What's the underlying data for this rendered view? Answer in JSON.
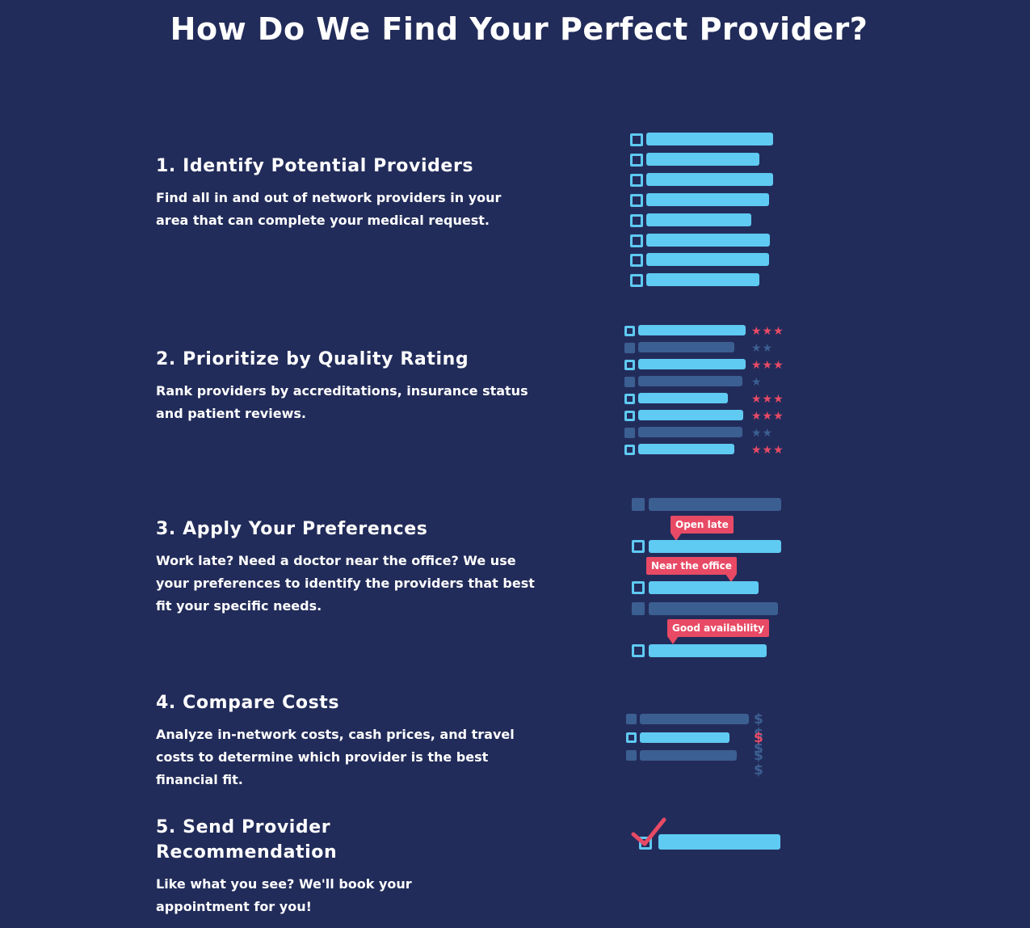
{
  "title": "How Do We Find Your Perfect Provider?",
  "colors": {
    "background": "#222c5a",
    "bar": "#5fcaf2",
    "bar_dim": "#3c5f92",
    "accent": "#e84a65"
  },
  "steps": [
    {
      "heading": "1. Identify Potential Providers",
      "body": "Find all in and out of network providers in your area that can complete your medical request."
    },
    {
      "heading": "2. Prioritize by Quality Rating",
      "body": "Rank providers by accreditations, insurance status and patient reviews."
    },
    {
      "heading": "3. Apply Your Preferences",
      "body": "Work late? Need a doctor near the office? We use your preferences to identify the providers that best fit your specific needs."
    },
    {
      "heading": "4. Compare Costs",
      "body": "Analyze in-network costs, cash prices, and travel costs to determine which provider is the best financial fit."
    },
    {
      "heading": "5. Send Provider Recommendation",
      "body": "Like what you see? We'll book your appointment for you!"
    }
  ],
  "quality_ratings": [
    "★★★",
    "★★",
    "★★★",
    "★",
    "★★★",
    "★★★",
    "★★",
    "★★★"
  ],
  "preference_tags": [
    "Open late",
    "Near the office",
    "Good availability"
  ],
  "cost_levels": [
    "$ $ $",
    "$",
    "$ $"
  ]
}
